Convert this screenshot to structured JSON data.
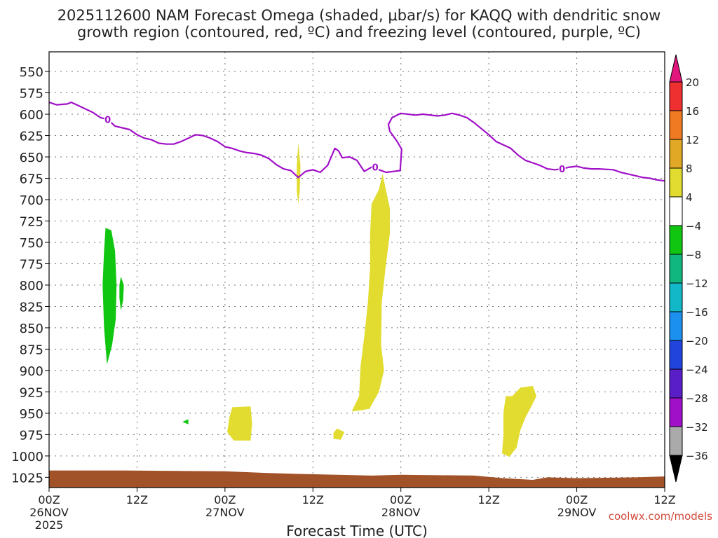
{
  "title_line1": "2025112600 NAM Forecast Omega (shaded, μbar/s) for KAQQ with dendritic snow",
  "title_line2": "growth region (contoured, red, ºC) and freezing level (contoured, purple, ºC)",
  "credit": "coolwx.com/models",
  "chart_data": {
    "type": "area",
    "xlabel": "Forecast Time (UTC)",
    "ylabel": "",
    "x_unit": "forecast hour",
    "xlim": [
      0,
      84
    ],
    "y_unit": "pressure (mb)",
    "ylim": [
      1037,
      527
    ],
    "y_ticks": [
      550,
      575,
      600,
      625,
      650,
      675,
      700,
      725,
      750,
      775,
      800,
      825,
      850,
      875,
      900,
      925,
      950,
      975,
      1000,
      1025
    ],
    "x_ticks": [
      {
        "hour": 0,
        "labels": [
          "00Z",
          "26NOV",
          "2025"
        ]
      },
      {
        "hour": 12,
        "labels": [
          "12Z"
        ]
      },
      {
        "hour": 24,
        "labels": [
          "00Z",
          "27NOV"
        ]
      },
      {
        "hour": 36,
        "labels": [
          "12Z"
        ]
      },
      {
        "hour": 48,
        "labels": [
          "00Z",
          "28NOV"
        ]
      },
      {
        "hour": 60,
        "labels": [
          "12Z"
        ]
      },
      {
        "hour": 72,
        "labels": [
          "00Z",
          "29NOV"
        ]
      },
      {
        "hour": 84,
        "labels": [
          "12Z"
        ]
      }
    ],
    "grid": true,
    "colorbar": {
      "labels": [
        "20",
        "16",
        "12",
        "8",
        "4",
        "−4",
        "−8",
        "−12",
        "−16",
        "−20",
        "−24",
        "−28",
        "−32",
        "−36"
      ],
      "colors": [
        "#e0167c",
        "#ee3030",
        "#ef7a22",
        "#e0a824",
        "#e2dc30",
        "#ffffff",
        "#11c611",
        "#10b880",
        "#12b8c8",
        "#1c90ee",
        "#2044dc",
        "#5a1ec8",
        "#a010c8",
        "#aaaaaa",
        "#000000"
      ]
    },
    "freezing_level": {
      "label": "0",
      "color": "#a010c8",
      "label_hours": [
        8.0,
        44.5,
        70.0
      ],
      "points": [
        [
          0,
          586
        ],
        [
          1,
          589
        ],
        [
          2.5,
          588
        ],
        [
          3,
          586
        ],
        [
          4,
          590
        ],
        [
          5,
          594
        ],
        [
          6,
          598
        ],
        [
          7,
          604
        ],
        [
          8,
          606
        ],
        [
          9,
          614
        ],
        [
          10,
          616
        ],
        [
          11,
          618
        ],
        [
          12,
          624
        ],
        [
          13,
          628
        ],
        [
          14,
          630
        ],
        [
          15,
          634
        ],
        [
          16,
          635
        ],
        [
          17,
          635
        ],
        [
          18,
          632
        ],
        [
          19,
          628
        ],
        [
          20,
          624
        ],
        [
          21,
          625
        ],
        [
          22,
          628
        ],
        [
          23,
          632
        ],
        [
          24,
          638
        ],
        [
          25,
          640
        ],
        [
          26,
          643
        ],
        [
          27,
          645
        ],
        [
          28,
          646
        ],
        [
          29,
          648
        ],
        [
          30,
          652
        ],
        [
          31,
          659
        ],
        [
          32,
          664
        ],
        [
          33,
          666
        ],
        [
          34,
          674
        ],
        [
          35,
          667
        ],
        [
          36,
          665
        ],
        [
          37,
          668
        ],
        [
          38,
          660
        ],
        [
          38.5,
          650
        ],
        [
          39,
          640
        ],
        [
          39.5,
          643
        ],
        [
          40,
          651
        ],
        [
          41,
          650
        ],
        [
          42,
          654
        ],
        [
          43,
          667
        ],
        [
          44,
          662
        ],
        [
          45,
          665
        ],
        [
          46,
          668
        ],
        [
          47,
          667
        ],
        [
          47.9,
          666
        ],
        [
          48.1,
          641
        ],
        [
          47.5,
          632
        ],
        [
          47,
          626
        ],
        [
          46.5,
          620
        ],
        [
          46.3,
          612
        ],
        [
          46.8,
          604
        ],
        [
          48,
          599
        ],
        [
          50,
          601
        ],
        [
          51,
          600
        ],
        [
          53,
          602
        ],
        [
          54,
          601
        ],
        [
          55,
          599
        ],
        [
          56,
          601
        ],
        [
          57,
          604
        ],
        [
          58,
          610
        ],
        [
          59,
          617
        ],
        [
          60,
          624
        ],
        [
          61,
          632
        ],
        [
          62,
          636
        ],
        [
          63,
          640
        ],
        [
          64,
          648
        ],
        [
          65,
          654
        ],
        [
          66,
          657
        ],
        [
          67,
          660
        ],
        [
          68,
          664
        ],
        [
          69,
          665
        ],
        [
          70,
          664
        ],
        [
          71,
          662
        ],
        [
          72,
          661
        ],
        [
          73,
          663
        ],
        [
          74,
          664
        ],
        [
          75,
          664
        ],
        [
          77,
          665
        ],
        [
          78,
          668
        ],
        [
          79,
          670
        ],
        [
          80,
          672
        ],
        [
          81,
          674
        ],
        [
          82,
          675
        ],
        [
          83,
          677
        ],
        [
          84,
          678
        ]
      ]
    },
    "omega_regions": [
      {
        "class": "-8 to -4",
        "color": "#11c611",
        "points": [
          [
            7.7,
            733
          ],
          [
            8.5,
            736
          ],
          [
            9.0,
            760
          ],
          [
            9.2,
            800
          ],
          [
            9.1,
            840
          ],
          [
            8.6,
            870
          ],
          [
            7.9,
            893
          ],
          [
            7.5,
            850
          ],
          [
            7.3,
            800
          ],
          [
            7.5,
            760
          ]
        ]
      },
      {
        "class": "-8 to -4",
        "color": "#11c611",
        "points": [
          [
            9.8,
            790
          ],
          [
            10.2,
            800
          ],
          [
            10.1,
            818
          ],
          [
            9.8,
            830
          ],
          [
            9.6,
            815
          ],
          [
            9.6,
            800
          ]
        ]
      },
      {
        "class": "-8 to -4",
        "color": "#11c611",
        "points": [
          [
            18.2,
            960
          ],
          [
            19.0,
            957
          ],
          [
            19.0,
            963
          ]
        ]
      },
      {
        "class": "4 to 8",
        "color": "#e2dc30",
        "points": [
          [
            34.0,
            633
          ],
          [
            34.3,
            660
          ],
          [
            34.2,
            690
          ],
          [
            34.0,
            705
          ],
          [
            33.8,
            690
          ],
          [
            33.8,
            660
          ]
        ]
      },
      {
        "class": "4 to 8",
        "color": "#e2dc30",
        "points": [
          [
            25.0,
            943
          ],
          [
            27.5,
            942
          ],
          [
            27.7,
            962
          ],
          [
            27.5,
            982
          ],
          [
            25.2,
            982
          ],
          [
            24.3,
            972
          ],
          [
            24.6,
            955
          ]
        ]
      },
      {
        "class": "4 to 8",
        "color": "#e2dc30",
        "points": [
          [
            39.3,
            968
          ],
          [
            40.3,
            972
          ],
          [
            39.8,
            981
          ],
          [
            38.8,
            980
          ],
          [
            38.8,
            973
          ]
        ]
      },
      {
        "class": "4 to 8",
        "color": "#e2dc30",
        "points": [
          [
            45.5,
            670
          ],
          [
            46.0,
            690
          ],
          [
            46.5,
            710
          ],
          [
            46.5,
            740
          ],
          [
            45.9,
            780
          ],
          [
            45.4,
            820
          ],
          [
            45.3,
            870
          ],
          [
            45.7,
            900
          ],
          [
            45.0,
            925
          ],
          [
            43.7,
            945
          ],
          [
            41.3,
            948
          ],
          [
            42.3,
            930
          ],
          [
            42.5,
            895
          ],
          [
            43.0,
            860
          ],
          [
            43.5,
            820
          ],
          [
            43.8,
            780
          ],
          [
            43.8,
            740
          ],
          [
            44.0,
            705
          ],
          [
            45.0,
            688
          ]
        ]
      },
      {
        "class": "4 to 8",
        "color": "#e2dc30",
        "points": [
          [
            64.3,
            920
          ],
          [
            66.0,
            918
          ],
          [
            66.5,
            930
          ],
          [
            65.8,
            942
          ],
          [
            65.0,
            955
          ],
          [
            64.3,
            970
          ],
          [
            63.8,
            990
          ],
          [
            62.8,
            1001
          ],
          [
            61.8,
            997
          ],
          [
            62.0,
            975
          ],
          [
            62.0,
            950
          ],
          [
            62.3,
            930
          ],
          [
            63.2,
            930
          ]
        ]
      }
    ],
    "terrain": {
      "color": "#a25228",
      "surface": [
        [
          0,
          1017
        ],
        [
          10,
          1017
        ],
        [
          24,
          1018
        ],
        [
          30,
          1020
        ],
        [
          34,
          1021
        ],
        [
          44,
          1023
        ],
        [
          48,
          1022
        ],
        [
          58,
          1023
        ],
        [
          62,
          1026
        ],
        [
          66,
          1028
        ],
        [
          68,
          1025
        ],
        [
          72,
          1026
        ],
        [
          80,
          1025
        ],
        [
          84,
          1024
        ]
      ]
    }
  }
}
